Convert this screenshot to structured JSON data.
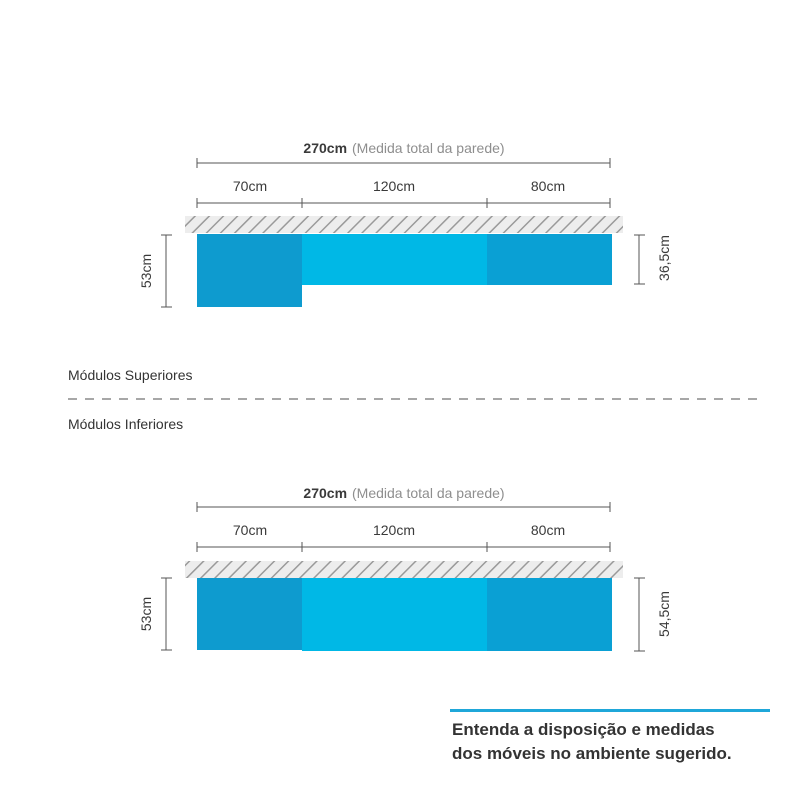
{
  "upper": {
    "total_value": "270cm",
    "total_note": "(Medida total da parede)",
    "seg1": "70cm",
    "seg2": "120cm",
    "seg3": "80cm",
    "left_height": "53cm",
    "right_height": "36,5cm"
  },
  "lower": {
    "total_value": "270cm",
    "total_note": "(Medida total da parede)",
    "seg1": "70cm",
    "seg2": "120cm",
    "seg3": "80cm",
    "left_height": "53cm",
    "right_height": "54,5cm"
  },
  "labels": {
    "superiores": "Módulos Superiores",
    "inferiores": "Módulos Inferiores"
  },
  "caption": {
    "line1": "Entenda a disposição e medidas",
    "line2": "dos móveis no ambiente sugerido."
  },
  "colors": {
    "module_dark": "#0e9bcf",
    "module_light": "#00b8e6",
    "module_mid": "#0aa0d4",
    "hatch": "#9a9a9a",
    "accent": "#1fa7d9"
  }
}
